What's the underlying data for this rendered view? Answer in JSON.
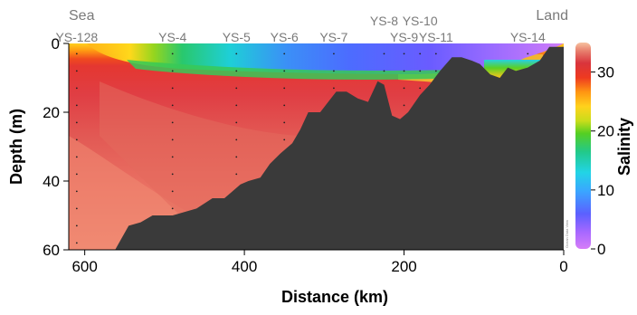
{
  "chart_data": {
    "type": "heatmap",
    "title": "",
    "xlabel": "Distance (km)",
    "ylabel": "Depth (m)",
    "xlim": [
      620,
      0
    ],
    "ylim": [
      60,
      0
    ],
    "x_ticks": [
      "600",
      "400",
      "200",
      "0"
    ],
    "y_ticks": [
      "0",
      "20",
      "40",
      "60"
    ],
    "colorbar": {
      "label": "Salinity",
      "ticks": [
        "0",
        "10",
        "20",
        "30"
      ],
      "range": [
        0,
        35
      ]
    },
    "end_labels": {
      "left": "Sea",
      "right": "Land"
    },
    "stations": [
      {
        "name": "YS-128",
        "distance": 610
      },
      {
        "name": "YS-4",
        "distance": 490
      },
      {
        "name": "YS-5",
        "distance": 410
      },
      {
        "name": "YS-6",
        "distance": 350
      },
      {
        "name": "YS-7",
        "distance": 288
      },
      {
        "name": "YS-8",
        "distance": 225
      },
      {
        "name": "YS-9",
        "distance": 200
      },
      {
        "name": "YS-10",
        "distance": 180
      },
      {
        "name": "YS-11",
        "distance": 160
      },
      {
        "name": "YS-14",
        "distance": 45
      }
    ],
    "seafloor": [
      [
        562,
        60
      ],
      [
        545,
        53
      ],
      [
        530,
        52
      ],
      [
        515,
        50
      ],
      [
        490,
        50
      ],
      [
        460,
        48
      ],
      [
        440,
        45
      ],
      [
        425,
        45
      ],
      [
        405,
        41
      ],
      [
        395,
        40
      ],
      [
        380,
        39
      ],
      [
        368,
        35
      ],
      [
        355,
        32
      ],
      [
        340,
        29
      ],
      [
        330,
        25
      ],
      [
        320,
        20
      ],
      [
        305,
        20
      ],
      [
        295,
        17
      ],
      [
        285,
        14
      ],
      [
        272,
        14
      ],
      [
        258,
        16
      ],
      [
        245,
        17
      ],
      [
        233,
        11
      ],
      [
        225,
        12
      ],
      [
        215,
        21
      ],
      [
        205,
        22
      ],
      [
        195,
        20
      ],
      [
        180,
        15
      ],
      [
        168,
        12
      ],
      [
        155,
        8
      ],
      [
        140,
        4
      ],
      [
        128,
        4
      ],
      [
        115,
        5
      ],
      [
        105,
        6
      ],
      [
        92,
        9
      ],
      [
        80,
        10
      ],
      [
        70,
        7
      ],
      [
        60,
        8
      ],
      [
        45,
        7
      ],
      [
        30,
        5
      ],
      [
        18,
        1
      ],
      [
        0,
        1
      ]
    ],
    "credit": "Ocean Data View"
  }
}
